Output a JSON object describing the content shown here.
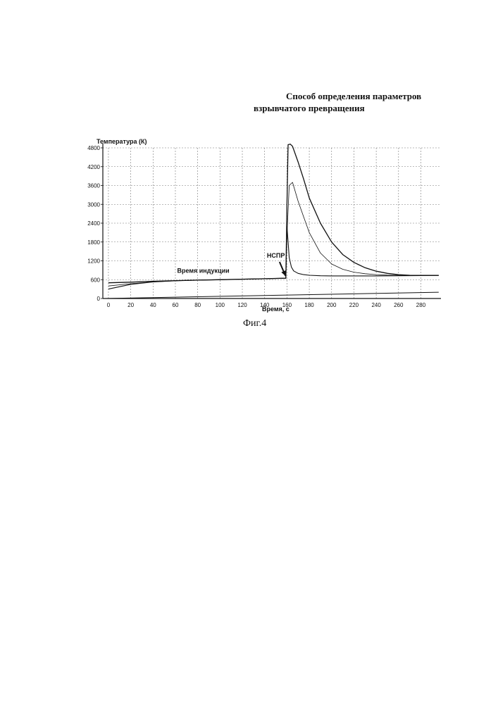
{
  "document": {
    "title_line1": "Способ определения параметров",
    "title_line2": "взрывчатого превращения",
    "figure_caption": "Фиг.4"
  },
  "chart_data": {
    "type": "line",
    "title": "",
    "ylabel": "Температура (К)",
    "xlabel": "Время, с",
    "xlim": [
      -5,
      298
    ],
    "ylim": [
      0,
      4800
    ],
    "x_ticks": [
      0,
      20,
      40,
      60,
      80,
      100,
      120,
      140,
      160,
      180,
      200,
      220,
      240,
      260,
      280
    ],
    "y_ticks": [
      0,
      600,
      1200,
      1800,
      2400,
      3000,
      3600,
      4200,
      4800
    ],
    "grid": true,
    "annotations": [
      {
        "text": "Время индукции",
        "x": 85,
        "y": 820
      },
      {
        "text": "НСПР",
        "x": 142,
        "y": 1300,
        "arrow_to": [
          160,
          650
        ]
      }
    ],
    "series": [
      {
        "x": [
          0,
          20,
          40,
          60,
          80,
          100,
          120,
          140,
          159,
          160,
          161,
          163,
          165,
          170,
          175,
          180,
          190,
          200,
          210,
          220,
          230,
          240,
          250,
          260,
          270,
          280,
          296
        ],
        "y": [
          500,
          520,
          550,
          570,
          585,
          600,
          615,
          630,
          645,
          3000,
          4900,
          4920,
          4850,
          4350,
          3800,
          3200,
          2400,
          1800,
          1400,
          1150,
          980,
          870,
          800,
          760,
          740,
          735,
          735
        ]
      },
      {
        "x": [
          0,
          20,
          40,
          60,
          80,
          100,
          120,
          140,
          159,
          160,
          162,
          165,
          170,
          175,
          180,
          190,
          200,
          210,
          220,
          230,
          240,
          250,
          260,
          280,
          296
        ],
        "y": [
          400,
          470,
          530,
          565,
          585,
          600,
          615,
          630,
          645,
          2000,
          3600,
          3700,
          3100,
          2600,
          2100,
          1450,
          1100,
          930,
          840,
          790,
          760,
          745,
          740,
          735,
          735
        ]
      },
      {
        "x": [
          0,
          20,
          40,
          60,
          80,
          100,
          120,
          140,
          159,
          160,
          161,
          162,
          164,
          166,
          170,
          175,
          180,
          190,
          200,
          220,
          240,
          260,
          280,
          296
        ],
        "y": [
          300,
          450,
          530,
          565,
          585,
          600,
          615,
          630,
          645,
          2300,
          1800,
          1300,
          1000,
          880,
          800,
          760,
          740,
          725,
          720,
          720,
          720,
          725,
          730,
          735
        ]
      },
      {
        "x": [
          -3,
          296
        ],
        "y": [
          0,
          200
        ]
      }
    ]
  }
}
